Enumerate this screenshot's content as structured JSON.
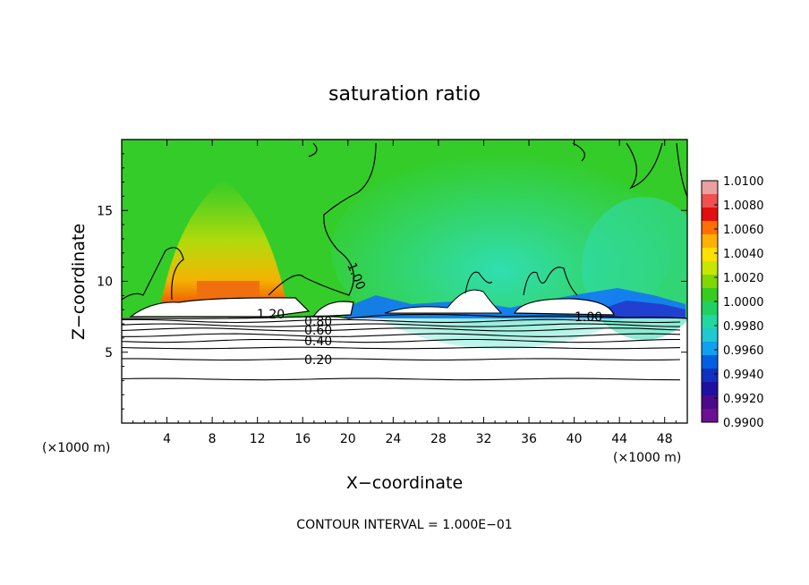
{
  "chart_data": {
    "type": "heatmap",
    "title": "saturation ratio",
    "xlabel": "X−coordinate",
    "ylabel": "Z−coordinate",
    "x_unit_label": "(×1000 m)",
    "y_unit_label": "(×1000 m)",
    "xlim": [
      0,
      50
    ],
    "ylim": [
      0,
      20
    ],
    "x_ticks": [
      "4",
      "8",
      "12",
      "16",
      "20",
      "24",
      "28",
      "32",
      "36",
      "40",
      "44",
      "48"
    ],
    "y_ticks": [
      "5",
      "10",
      "15"
    ],
    "x_tick_values": [
      4,
      8,
      12,
      16,
      20,
      24,
      28,
      32,
      36,
      40,
      44,
      48
    ],
    "y_tick_values": [
      5,
      10,
      15
    ],
    "colorbar": {
      "ticks": [
        "1.0100",
        "1.0080",
        "1.0060",
        "1.0040",
        "1.0020",
        "1.0000",
        "0.9980",
        "0.9960",
        "0.9940",
        "0.9920",
        "0.9900"
      ],
      "colors": [
        "#e8a0a0",
        "#f05050",
        "#e01010",
        "#ff7000",
        "#ffb000",
        "#ffe000",
        "#c8e600",
        "#80d800",
        "#38cc20",
        "#20d060",
        "#20d8a0",
        "#20c8d0",
        "#10a0f0",
        "#0060e0",
        "#1030c0",
        "#2010a0",
        "#4a0a8a",
        "#6a1090"
      ]
    },
    "contour_labels": [
      "1.20",
      "1.00",
      "1.00",
      "0.80",
      "0.60",
      "0.40",
      "0.20"
    ],
    "contour_levels_z": [
      3.1,
      4.5,
      5.3,
      5.8,
      6.2,
      6.6,
      6.9,
      7.2
    ],
    "contour_interval_text": "CONTOUR INTERVAL = 1.000E−01"
  },
  "colors": {
    "field_main": "#30d020",
    "field_cyan": "#40e0b0",
    "field_warm": "#ffd000",
    "field_hot": "#f06000",
    "field_blue": "#1060ff"
  }
}
